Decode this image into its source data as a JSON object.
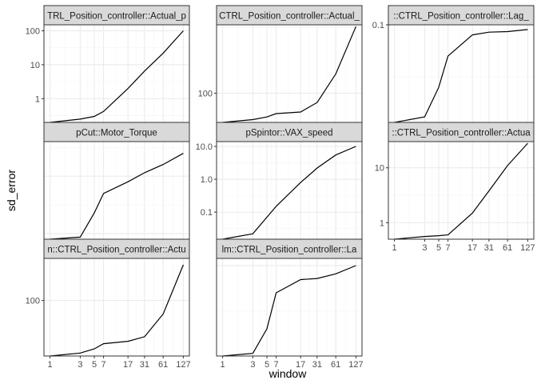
{
  "chart_data": {
    "type": "line",
    "theme": "bw",
    "xlabel": "window",
    "ylabel": "sd_error",
    "x_scale": "log",
    "y_scale": "log",
    "x_ticks": [
      "1",
      "3",
      "5",
      "7",
      "17",
      "31",
      "61",
      "127"
    ],
    "x": [
      1,
      3,
      5,
      7,
      17,
      31,
      61,
      127
    ],
    "colors": {
      "line": "#000000",
      "strip": "#d9d9d9",
      "grid_major": "#ebebeb",
      "grid_minor": "#f5f5f5"
    },
    "panels": [
      {
        "strip": "TRL_Position_controller::Actual_p",
        "values": [
          0.2,
          0.25,
          0.3,
          0.42,
          2.0,
          6.5,
          22,
          100
        ],
        "ylim": [
          0.2,
          150
        ],
        "yticks": [
          1,
          10,
          100
        ],
        "ytick_labels": [
          "1",
          "10",
          "100"
        ]
      },
      {
        "strip": "CTRL_Position_controller::Actual_",
        "values": [
          60,
          63,
          66,
          70,
          72,
          85,
          140,
          320
        ],
        "ylim": [
          60,
          330
        ],
        "yticks": [
          100
        ],
        "ytick_labels": [
          "100"
        ]
      },
      {
        "strip": "::CTRL_Position_controller::Lag_",
        "values": [
          0.0115,
          0.013,
          0.025,
          0.05,
          0.08,
          0.085,
          0.086,
          0.09
        ],
        "ylim": [
          0.0115,
          0.1
        ],
        "yticks": [
          0.1
        ],
        "ytick_labels": [
          "0.1"
        ]
      },
      {
        "strip": "pCut::Motor_Torque",
        "values": [
          0.8,
          0.87,
          2.3,
          5.0,
          8.0,
          11.5,
          16,
          25
        ],
        "ylim": [
          0.8,
          40
        ],
        "yticks": [],
        "ytick_labels": []
      },
      {
        "strip": "pSpintor::VAX_speed",
        "values": [
          0.015,
          0.022,
          0.07,
          0.15,
          0.8,
          2.2,
          5.5,
          10
        ],
        "ylim": [
          0.015,
          14
        ],
        "yticks": [
          0.1,
          1.0,
          10.0
        ],
        "ytick_labels": [
          "0.1",
          "1.0",
          "10.0"
        ]
      },
      {
        "strip": "::CTRL_Position_controller::Actua",
        "values": [
          0.5,
          0.56,
          0.58,
          0.6,
          1.5,
          3.8,
          11,
          28
        ],
        "ylim": [
          0.5,
          30
        ],
        "yticks": [
          1,
          10
        ],
        "ytick_labels": [
          "1",
          "10"
        ]
      },
      {
        "strip": "n::CTRL_Position_controller::Actu",
        "values": [
          40,
          42,
          45,
          49,
          51,
          55,
          80,
          180
        ],
        "ylim": [
          40,
          200
        ],
        "yticks": [
          100
        ],
        "ytick_labels": [
          "100"
        ]
      },
      {
        "strip": "lm::CTRL_Position_controller::La",
        "values": [
          0.01,
          0.0107,
          0.02,
          0.05,
          0.07,
          0.072,
          0.081,
          0.1
        ],
        "ylim": [
          0.01,
          0.12
        ],
        "yticks": [],
        "ytick_labels": []
      }
    ]
  }
}
